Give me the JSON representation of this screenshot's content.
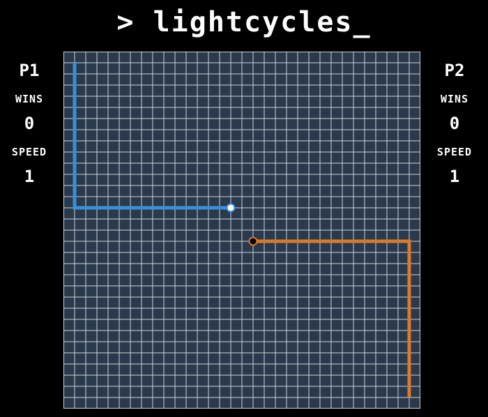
{
  "title": "> lightcycles_",
  "players": [
    {
      "name": "P1",
      "wins_label": "WINS",
      "wins": "0",
      "speed_label": "SPEED",
      "speed": "1",
      "color": "#3a8fd9",
      "head_color": "#ffffff",
      "trail": [
        [
          1,
          1
        ],
        [
          1,
          14
        ],
        [
          15,
          14
        ]
      ]
    },
    {
      "name": "P2",
      "wins_label": "WINS",
      "wins": "0",
      "speed_label": "SPEED",
      "speed": "1",
      "color": "#d9792a",
      "head_color": "#000000",
      "trail": [
        [
          31,
          31
        ],
        [
          31,
          17
        ],
        [
          17,
          17
        ]
      ]
    }
  ],
  "board": {
    "columns": 32,
    "rows": 32,
    "background": "#2a3a4c",
    "grid_color": "#e6ecf2"
  }
}
